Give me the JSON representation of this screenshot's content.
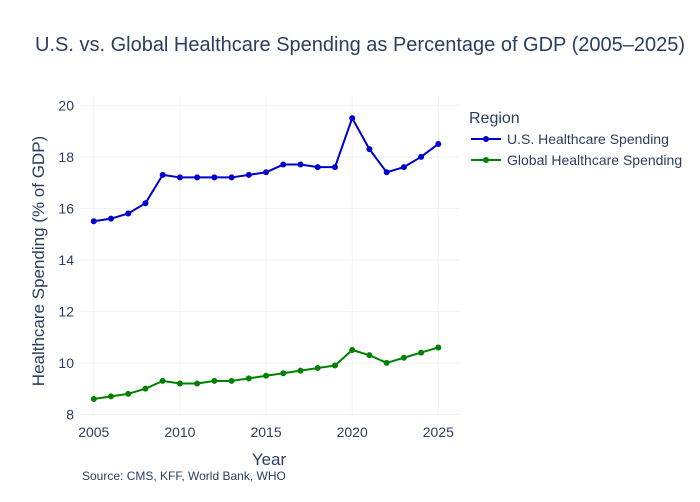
{
  "chart_data": {
    "type": "line",
    "title": "U.S. vs. Global Healthcare Spending as Percentage of GDP (2005–2025)",
    "xlabel": "Year",
    "ylabel": "Healthcare Spending (% of GDP)",
    "xlim": [
      2004.2,
      2026.2
    ],
    "ylim": [
      7.9,
      20.4
    ],
    "x_ticks": [
      2005,
      2010,
      2015,
      2020,
      2025
    ],
    "x_tick_labels": [
      "2005",
      "2010",
      "2015",
      "2020",
      "2025"
    ],
    "y_ticks": [
      8,
      10,
      12,
      14,
      16,
      18,
      20
    ],
    "y_tick_labels": [
      "8",
      "10",
      "12",
      "14",
      "16",
      "18",
      "20"
    ],
    "grid": true,
    "legend": {
      "title": "Region",
      "placement": "top-right-outside"
    },
    "x": [
      2005,
      2006,
      2007,
      2008,
      2009,
      2010,
      2011,
      2012,
      2013,
      2014,
      2015,
      2016,
      2017,
      2018,
      2019,
      2020,
      2021,
      2022,
      2023,
      2024,
      2025
    ],
    "series": [
      {
        "name": "U.S. Healthcare Spending",
        "color": "#0000cd",
        "values": [
          15.5,
          15.6,
          15.8,
          16.2,
          17.3,
          17.2,
          17.2,
          17.2,
          17.2,
          17.3,
          17.4,
          17.7,
          17.7,
          17.6,
          17.6,
          19.5,
          18.3,
          17.4,
          17.6,
          18.0,
          18.5
        ]
      },
      {
        "name": "Global Healthcare Spending",
        "color": "#008000",
        "values": [
          8.6,
          8.7,
          8.8,
          9.0,
          9.3,
          9.2,
          9.2,
          9.3,
          9.3,
          9.4,
          9.5,
          9.6,
          9.7,
          9.8,
          9.9,
          10.5,
          10.3,
          10.0,
          10.2,
          10.4,
          10.6
        ]
      }
    ],
    "source_note": "Source: CMS, KFF, World Bank, WHO"
  }
}
